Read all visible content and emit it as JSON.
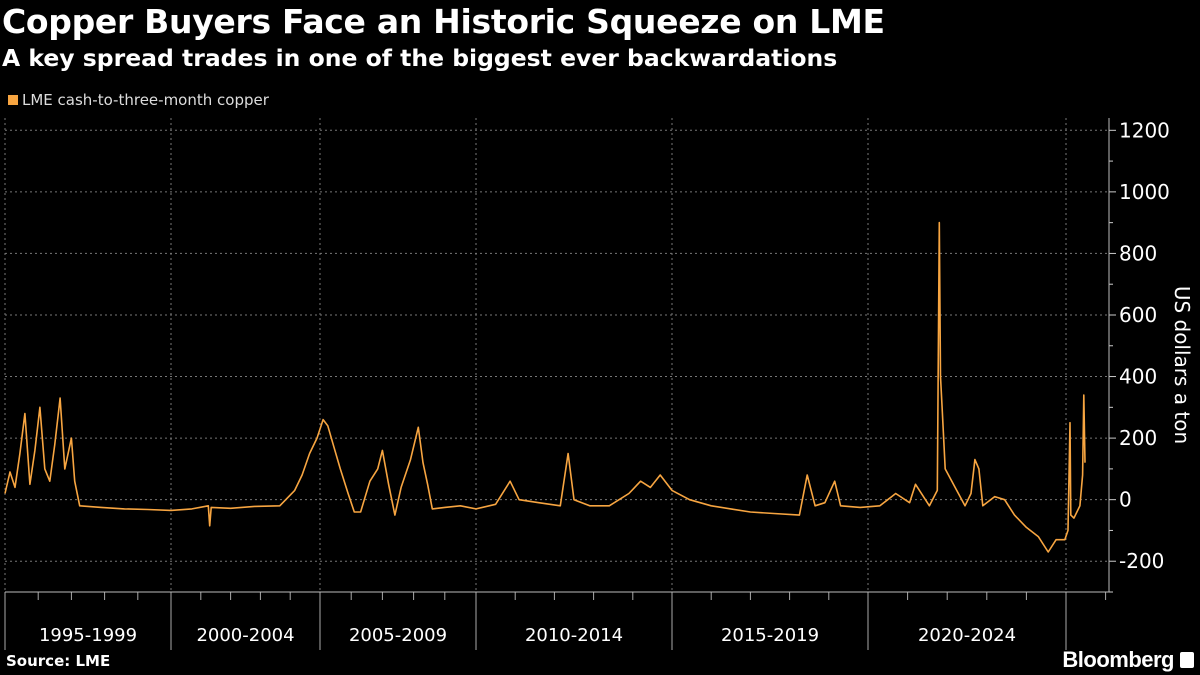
{
  "title": "Copper Buyers Face an Historic Squeeze on LME",
  "subtitle": "A key spread trades in one of the biggest ever backwardations",
  "source": "Source: LME",
  "brand": "Bloomberg",
  "chart_data": {
    "type": "line",
    "title": "Copper Buyers Face an Historic Squeeze on LME",
    "subtitle": "A key spread trades in one of the biggest ever backwardations",
    "ylabel": "US dollars a ton",
    "xlabel": "",
    "ylim": [
      -300,
      1240
    ],
    "xlim": [
      1995,
      2025.6
    ],
    "yticks": [
      -200,
      0,
      200,
      400,
      600,
      800,
      1000,
      1200
    ],
    "ytick_labels": [
      "-200",
      "0",
      "200",
      "400",
      "600",
      "800",
      "1000",
      "1200"
    ],
    "x_groups": [
      {
        "label": "1995-1999",
        "start": 1995,
        "end": 2000
      },
      {
        "label": "2000-2004",
        "start": 2000,
        "end": 2005
      },
      {
        "label": "2005-2009",
        "start": 2005,
        "end": 2010
      },
      {
        "label": "2010-2014",
        "start": 2010,
        "end": 2015
      },
      {
        "label": "2015-2019",
        "start": 2015,
        "end": 2020
      },
      {
        "label": "2020-2024",
        "start": 2020,
        "end": 2025
      }
    ],
    "grid": true,
    "legend_position": "top-left",
    "color": "#f7a541",
    "series": [
      {
        "name": "LME cash-to-three-month copper",
        "points": [
          [
            1995.0,
            20
          ],
          [
            1995.15,
            90
          ],
          [
            1995.3,
            40
          ],
          [
            1995.45,
            150
          ],
          [
            1995.6,
            280
          ],
          [
            1995.75,
            50
          ],
          [
            1995.9,
            160
          ],
          [
            1996.05,
            300
          ],
          [
            1996.2,
            100
          ],
          [
            1996.35,
            60
          ],
          [
            1996.5,
            180
          ],
          [
            1996.66,
            330
          ],
          [
            1996.8,
            100
          ],
          [
            1997.0,
            200
          ],
          [
            1997.1,
            60
          ],
          [
            1997.25,
            -20
          ],
          [
            1997.9,
            -25
          ],
          [
            1998.6,
            -30
          ],
          [
            1999.3,
            -32
          ],
          [
            2000.0,
            -35
          ],
          [
            2000.7,
            -30
          ],
          [
            2001.25,
            -20
          ],
          [
            2001.3,
            -85
          ],
          [
            2001.35,
            -25
          ],
          [
            2002.0,
            -28
          ],
          [
            2002.8,
            -22
          ],
          [
            2003.65,
            -20
          ],
          [
            2004.15,
            30
          ],
          [
            2004.4,
            80
          ],
          [
            2004.65,
            150
          ],
          [
            2004.9,
            200
          ],
          [
            2005.1,
            260
          ],
          [
            2005.25,
            240
          ],
          [
            2005.45,
            170
          ],
          [
            2005.65,
            100
          ],
          [
            2005.9,
            20
          ],
          [
            2006.1,
            -40
          ],
          [
            2006.3,
            -40
          ],
          [
            2006.6,
            60
          ],
          [
            2006.85,
            100
          ],
          [
            2007.0,
            160
          ],
          [
            2007.2,
            50
          ],
          [
            2007.4,
            -50
          ],
          [
            2007.6,
            40
          ],
          [
            2007.9,
            130
          ],
          [
            2008.15,
            235
          ],
          [
            2008.3,
            120
          ],
          [
            2008.45,
            50
          ],
          [
            2008.6,
            -30
          ],
          [
            2009.0,
            -25
          ],
          [
            2009.5,
            -20
          ],
          [
            2010.0,
            -30
          ],
          [
            2010.5,
            -15
          ],
          [
            2010.87,
            60
          ],
          [
            2011.1,
            0
          ],
          [
            2011.6,
            -10
          ],
          [
            2012.15,
            -20
          ],
          [
            2012.35,
            150
          ],
          [
            2012.5,
            0
          ],
          [
            2012.9,
            -20
          ],
          [
            2013.4,
            -20
          ],
          [
            2013.9,
            20
          ],
          [
            2014.2,
            60
          ],
          [
            2014.45,
            40
          ],
          [
            2014.7,
            80
          ],
          [
            2015.0,
            30
          ],
          [
            2015.45,
            0
          ],
          [
            2016.0,
            -20
          ],
          [
            2016.5,
            -30
          ],
          [
            2017.0,
            -40
          ],
          [
            2017.6,
            -45
          ],
          [
            2018.25,
            -50
          ],
          [
            2018.45,
            80
          ],
          [
            2018.65,
            -20
          ],
          [
            2018.9,
            -10
          ],
          [
            2019.15,
            60
          ],
          [
            2019.3,
            -20
          ],
          [
            2019.8,
            -25
          ],
          [
            2020.3,
            -20
          ],
          [
            2020.7,
            20
          ],
          [
            2021.05,
            -10
          ],
          [
            2021.2,
            50
          ],
          [
            2021.55,
            -20
          ],
          [
            2021.75,
            30
          ],
          [
            2021.8,
            900
          ],
          [
            2021.83,
            400
          ],
          [
            2021.87,
            300
          ],
          [
            2021.95,
            100
          ],
          [
            2022.2,
            40
          ],
          [
            2022.45,
            -20
          ],
          [
            2022.6,
            20
          ],
          [
            2022.7,
            130
          ],
          [
            2022.8,
            100
          ],
          [
            2022.9,
            -20
          ],
          [
            2023.2,
            10
          ],
          [
            2023.45,
            0
          ],
          [
            2023.7,
            -50
          ],
          [
            2024.0,
            -90
          ],
          [
            2024.3,
            -120
          ],
          [
            2024.55,
            -170
          ],
          [
            2024.75,
            -130
          ],
          [
            2024.97,
            -130
          ],
          [
            2025.05,
            -100
          ],
          [
            2025.1,
            250
          ],
          [
            2025.12,
            -50
          ],
          [
            2025.2,
            -60
          ],
          [
            2025.35,
            -20
          ],
          [
            2025.42,
            80
          ],
          [
            2025.45,
            340
          ],
          [
            2025.48,
            120
          ]
        ]
      }
    ]
  }
}
